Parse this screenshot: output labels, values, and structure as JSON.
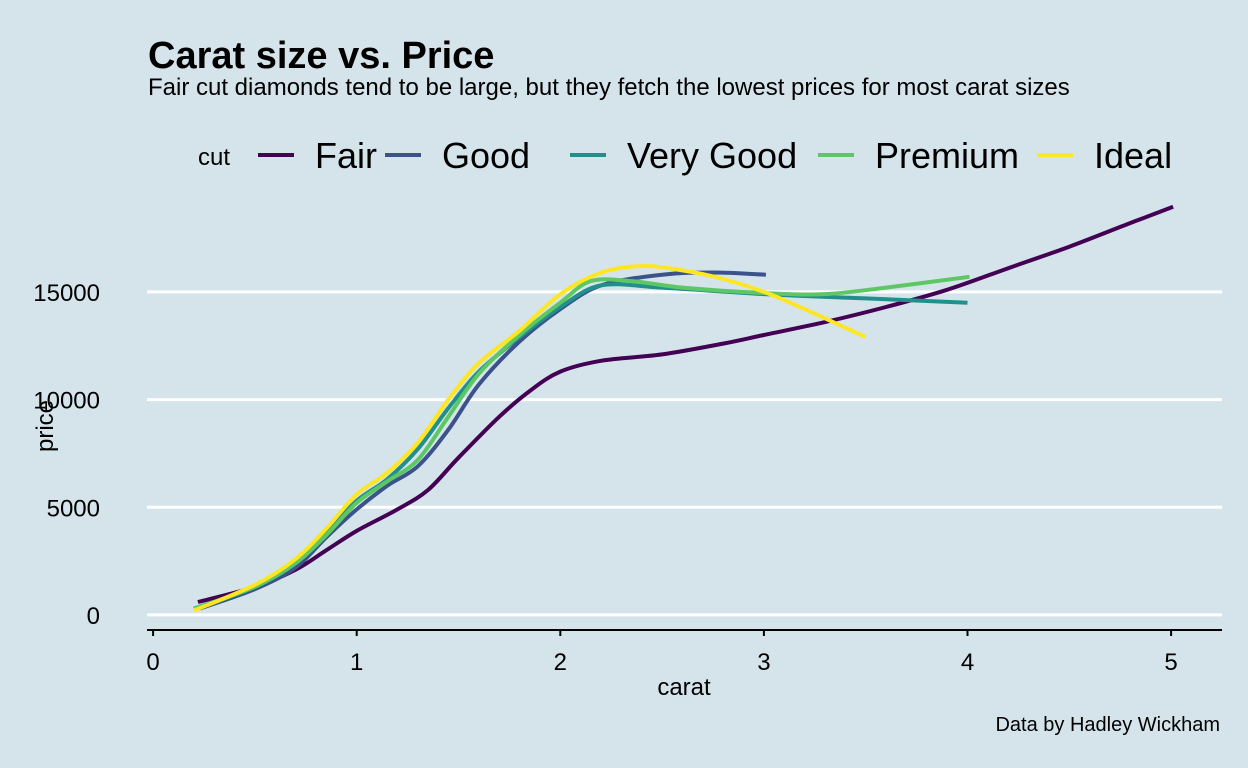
{
  "chart_data": {
    "type": "line",
    "title": "Carat size vs. Price",
    "subtitle": "Fair cut diamonds tend to be large, but they fetch the lowest prices for most carat sizes",
    "xlabel": "carat",
    "ylabel": "price",
    "caption": "Data by Hadley Wickham",
    "legend_title": "cut",
    "legend_position": "top",
    "xlim": [
      -0.03,
      5.25
    ],
    "ylim": [
      -700,
      19500
    ],
    "xticks": [
      0,
      1,
      2,
      3,
      4,
      5
    ],
    "yticks": [
      0,
      5000,
      10000,
      15000
    ],
    "grid": "horizontal major lines only",
    "series": [
      {
        "name": "Fair",
        "color": "#440154",
        "x": [
          0.22,
          0.5,
          0.7,
          0.85,
          1.0,
          1.2,
          1.35,
          1.5,
          1.7,
          1.85,
          2.0,
          2.2,
          2.5,
          2.8,
          3.0,
          3.3,
          3.6,
          3.9,
          4.2,
          4.5,
          4.8,
          5.01
        ],
        "y": [
          600,
          1300,
          2100,
          3000,
          3900,
          4900,
          5800,
          7300,
          9200,
          10400,
          11300,
          11800,
          12100,
          12600,
          13000,
          13600,
          14300,
          15100,
          16100,
          17100,
          18200,
          18950
        ]
      },
      {
        "name": "Good",
        "color": "#3b528b",
        "x": [
          0.23,
          0.5,
          0.7,
          0.85,
          1.0,
          1.15,
          1.3,
          1.45,
          1.6,
          1.8,
          2.0,
          2.2,
          2.5,
          2.75,
          3.01
        ],
        "y": [
          300,
          1200,
          2200,
          3600,
          4900,
          6000,
          6900,
          8600,
          10700,
          12700,
          14200,
          15300,
          15800,
          15900,
          15800
        ]
      },
      {
        "name": "Very Good",
        "color": "#21908d",
        "x": [
          0.22,
          0.5,
          0.7,
          0.85,
          1.0,
          1.15,
          1.3,
          1.45,
          1.6,
          1.8,
          2.0,
          2.2,
          2.5,
          3.0,
          3.5,
          4.0
        ],
        "y": [
          300,
          1300,
          2400,
          3800,
          5300,
          6300,
          7700,
          9600,
          11300,
          12900,
          14300,
          15300,
          15200,
          14900,
          14700,
          14500
        ]
      },
      {
        "name": "Premium",
        "color": "#5dc863",
        "x": [
          0.2,
          0.5,
          0.7,
          0.85,
          1.0,
          1.15,
          1.3,
          1.45,
          1.6,
          1.8,
          2.0,
          2.15,
          2.35,
          2.6,
          3.0,
          3.3,
          3.6,
          4.01
        ],
        "y": [
          300,
          1300,
          2400,
          3700,
          5200,
          6200,
          7200,
          9200,
          11200,
          13000,
          14500,
          15500,
          15500,
          15200,
          14950,
          14900,
          15200,
          15700
        ]
      },
      {
        "name": "Ideal",
        "color": "#fde725",
        "x": [
          0.2,
          0.5,
          0.7,
          0.85,
          1.0,
          1.15,
          1.3,
          1.45,
          1.6,
          1.8,
          2.0,
          2.2,
          2.4,
          2.6,
          2.8,
          3.0,
          3.2,
          3.5
        ],
        "y": [
          200,
          1400,
          2600,
          4000,
          5600,
          6600,
          8000,
          10000,
          11700,
          13200,
          14900,
          15900,
          16200,
          16000,
          15600,
          15000,
          14200,
          12900
        ]
      }
    ]
  }
}
